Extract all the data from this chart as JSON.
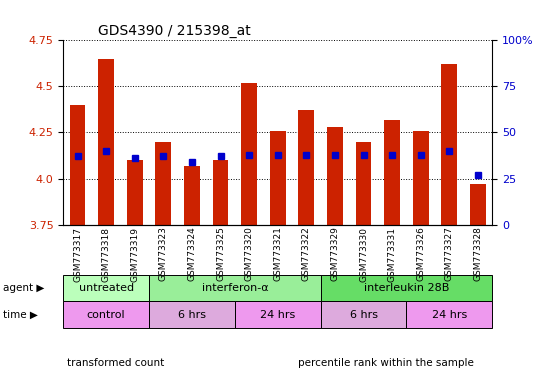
{
  "title": "GDS4390 / 215398_at",
  "samples": [
    "GSM773317",
    "GSM773318",
    "GSM773319",
    "GSM773323",
    "GSM773324",
    "GSM773325",
    "GSM773320",
    "GSM773321",
    "GSM773322",
    "GSM773329",
    "GSM773330",
    "GSM773331",
    "GSM773326",
    "GSM773327",
    "GSM773328"
  ],
  "transformed_count": [
    4.4,
    4.65,
    4.1,
    4.2,
    4.07,
    4.1,
    4.52,
    4.26,
    4.37,
    4.28,
    4.2,
    4.32,
    4.26,
    4.62,
    3.97
  ],
  "percentile_rank": [
    37,
    40,
    36,
    37,
    34,
    37,
    38,
    38,
    38,
    38,
    38,
    38,
    38,
    40,
    27
  ],
  "y_min": 3.75,
  "y_max": 4.75,
  "y_ticks": [
    3.75,
    4.0,
    4.25,
    4.5,
    4.75
  ],
  "y2_ticks": [
    0,
    25,
    50,
    75,
    100
  ],
  "bar_color": "#cc2200",
  "blue_color": "#0000cc",
  "agent_groups": [
    {
      "label": "untreated",
      "start": 0,
      "end": 3,
      "color": "#bbffbb"
    },
    {
      "label": "interferon-α",
      "start": 3,
      "end": 9,
      "color": "#99ee99"
    },
    {
      "label": "interleukin 28B",
      "start": 9,
      "end": 15,
      "color": "#66dd66"
    }
  ],
  "time_groups": [
    {
      "label": "control",
      "start": 0,
      "end": 3,
      "color": "#ee99ee"
    },
    {
      "label": "6 hrs",
      "start": 3,
      "end": 6,
      "color": "#ddaadd"
    },
    {
      "label": "24 hrs",
      "start": 6,
      "end": 9,
      "color": "#ee99ee"
    },
    {
      "label": "6 hrs",
      "start": 9,
      "end": 12,
      "color": "#ddaadd"
    },
    {
      "label": "24 hrs",
      "start": 12,
      "end": 15,
      "color": "#ee99ee"
    }
  ],
  "legend_items": [
    {
      "color": "#cc2200",
      "label": "transformed count"
    },
    {
      "color": "#0000cc",
      "label": "percentile rank within the sample"
    }
  ],
  "left_tick_color": "#cc2200",
  "right_tick_color": "#0000cc"
}
